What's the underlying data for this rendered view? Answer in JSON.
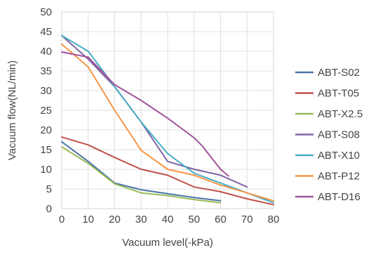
{
  "chart_data": {
    "type": "line",
    "xlabel": "Vacuum level(-kPa)",
    "ylabel": "Vacuum flow(NL/min)",
    "xlim": [
      0,
      80
    ],
    "ylim": [
      0,
      50
    ],
    "x_ticks": [
      0,
      10,
      20,
      30,
      40,
      50,
      60,
      70,
      80
    ],
    "y_ticks": [
      0,
      5,
      10,
      15,
      20,
      25,
      30,
      35,
      40,
      45,
      50
    ],
    "grid": true,
    "legend_position": "right",
    "series": [
      {
        "name": "ABT-S02",
        "color": "#4a74a8",
        "points": [
          [
            0,
            17
          ],
          [
            10,
            12
          ],
          [
            20,
            6.5
          ],
          [
            30,
            4.8
          ],
          [
            40,
            3.8
          ],
          [
            50,
            2.8
          ],
          [
            60,
            2
          ]
        ]
      },
      {
        "name": "ABT-T05",
        "color": "#c0504d",
        "points": [
          [
            0,
            18.2
          ],
          [
            10,
            16.2
          ],
          [
            20,
            13
          ],
          [
            30,
            10
          ],
          [
            40,
            8.5
          ],
          [
            50,
            5.5
          ],
          [
            60,
            4.3
          ],
          [
            70,
            2.5
          ],
          [
            80,
            1
          ]
        ]
      },
      {
        "name": "ABT-X2.5",
        "color": "#9bbb59",
        "points": [
          [
            0,
            15.7
          ],
          [
            10,
            11.5
          ],
          [
            20,
            6.3
          ],
          [
            30,
            4
          ],
          [
            40,
            3.3
          ],
          [
            50,
            2.3
          ],
          [
            60,
            1.5
          ]
        ]
      },
      {
        "name": "ABT-S08",
        "color": "#7f64a5",
        "points": [
          [
            0,
            44
          ],
          [
            10,
            38
          ],
          [
            20,
            31
          ],
          [
            30,
            22
          ],
          [
            40,
            12
          ],
          [
            50,
            10
          ],
          [
            60,
            8.5
          ],
          [
            70,
            5.5
          ]
        ]
      },
      {
        "name": "ABT-X10",
        "color": "#4bacc6",
        "points": [
          [
            0,
            44
          ],
          [
            10,
            40
          ],
          [
            20,
            31
          ],
          [
            30,
            22
          ],
          [
            40,
            14
          ],
          [
            50,
            9
          ],
          [
            60,
            6.5
          ],
          [
            70,
            4
          ],
          [
            80,
            1.5
          ]
        ]
      },
      {
        "name": "ABT-P12",
        "color": "#f79646",
        "points": [
          [
            0,
            41.8
          ],
          [
            10,
            36
          ],
          [
            20,
            25
          ],
          [
            30,
            14.8
          ],
          [
            40,
            10
          ],
          [
            50,
            8.5
          ],
          [
            60,
            6
          ],
          [
            70,
            4
          ],
          [
            80,
            2
          ]
        ]
      },
      {
        "name": "ABT-D16",
        "color": "#a0539a",
        "points": [
          [
            0,
            39.8
          ],
          [
            10,
            38.5
          ],
          [
            20,
            31.5
          ],
          [
            30,
            27.5
          ],
          [
            40,
            23
          ],
          [
            50,
            18
          ],
          [
            53,
            16
          ],
          [
            60,
            10
          ],
          [
            63,
            8.3
          ]
        ]
      }
    ]
  }
}
